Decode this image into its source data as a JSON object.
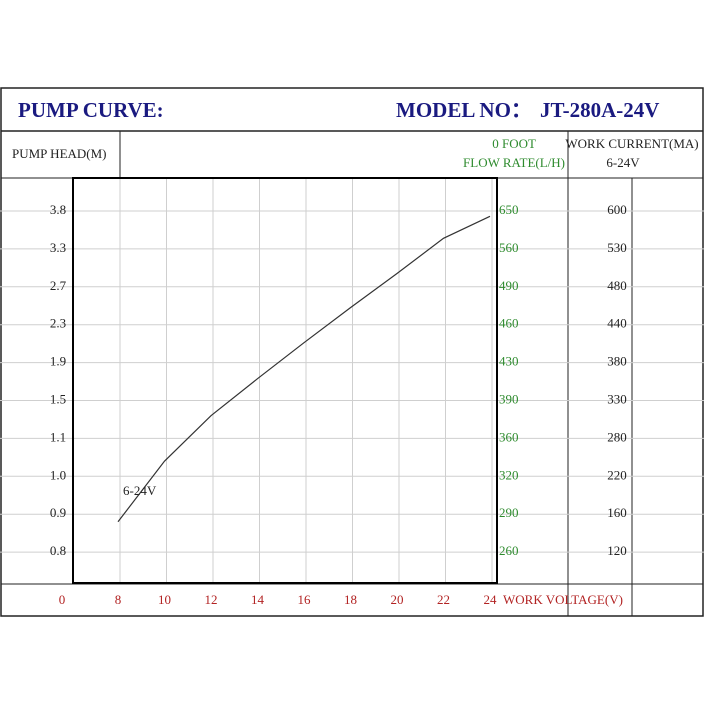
{
  "chart_data": {
    "type": "line",
    "title": "PUMP CURVE:",
    "model_label": "MODEL NO：",
    "model": "JT-280A-24V",
    "y_label": "PUMP HEAD(M)",
    "flow_column_title": [
      "0 FOOT",
      "FLOW RATE(L/H)"
    ],
    "current_column_title": [
      "WORK CURRENT(MA)",
      "6-24V"
    ],
    "x_label": "WORK VOLTAGE(V)",
    "x": [
      8,
      10,
      12,
      14,
      16,
      18,
      20,
      22,
      24
    ],
    "series": [
      {
        "name": "6-24V",
        "color": "#333333",
        "values": [
          0.88,
          1.04,
          1.34,
          1.73,
          2.11,
          2.48,
          2.91,
          3.44,
          3.73
        ]
      }
    ],
    "xticks": [
      0,
      8,
      10,
      12,
      14,
      16,
      18,
      20,
      22,
      24
    ],
    "yticks": [
      {
        "value": 3.8,
        "label": "3.8"
      },
      {
        "value": 3.3,
        "label": "3.3"
      },
      {
        "value": 2.7,
        "label": "2.7"
      },
      {
        "value": 2.3,
        "label": "2.3"
      },
      {
        "value": 1.9,
        "label": "1.9"
      },
      {
        "value": 1.5,
        "label": "1.5"
      },
      {
        "value": 1.1,
        "label": "1.1"
      },
      {
        "value": 1.0,
        "label": "1.0"
      },
      {
        "value": 0.9,
        "label": "0.9"
      },
      {
        "value": 0.8,
        "label": "0.8"
      }
    ],
    "flow_rate_labels": [
      650,
      560,
      490,
      460,
      430,
      390,
      360,
      320,
      290,
      260
    ],
    "current_labels": [
      600,
      530,
      480,
      440,
      380,
      330,
      280,
      220,
      160,
      120
    ],
    "grid": true
  }
}
